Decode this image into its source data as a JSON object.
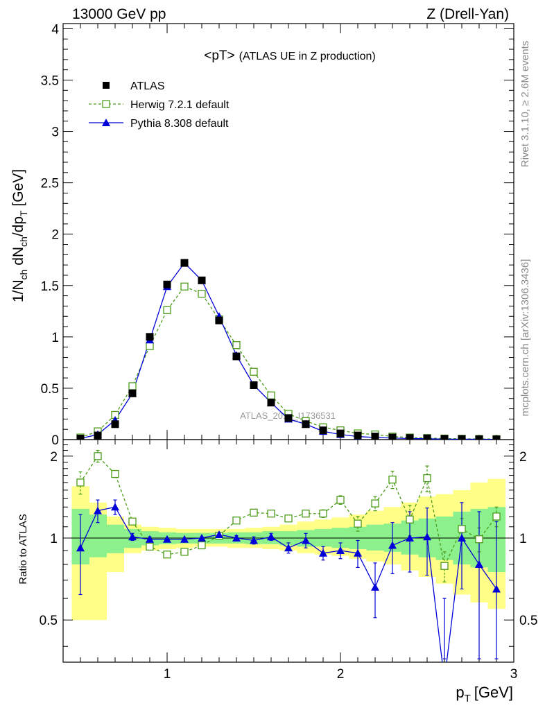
{
  "header": {
    "left": "13000 GeV pp",
    "right": "Z (Drell-Yan)"
  },
  "side_labels": {
    "rivet": "Rivet 3.1.10, ≥ 2.6M events",
    "mcplots": "mcplots.cern.ch [arXiv:1306.3436]"
  },
  "chart_data": {
    "type": "scatter",
    "title_main": "<pT>",
    "title_sub": "(ATLAS UE in Z production)",
    "watermark": "ATLAS_2019_I1736531",
    "xlabel": "p",
    "xlabel_sub": "T",
    "xlabel_unit": "[GeV]",
    "xlim": [
      0.4,
      3.0
    ],
    "x_ticks": [
      1,
      2,
      3
    ],
    "x_tick_labels": [
      "1",
      "2",
      "3"
    ],
    "main": {
      "ylabel_parts": {
        "a": "1/N",
        "a_sub": "ch",
        "b": " dN",
        "b_sub": "ch",
        "c": "/dp",
        "c_sub": "T",
        "d": " [GeV]"
      },
      "ylim": [
        0,
        4.05
      ],
      "y_ticks": [
        0,
        0.5,
        1,
        1.5,
        2,
        2.5,
        3,
        3.5,
        4
      ],
      "y_tick_labels": [
        "0",
        "0.5",
        "1",
        "1.5",
        "2",
        "2.5",
        "3",
        "3.5",
        "4"
      ],
      "legend": [
        "ATLAS",
        "Herwig 7.2.1 default",
        "Pythia 8.308 default"
      ],
      "x": [
        0.5,
        0.6,
        0.7,
        0.8,
        0.9,
        1.0,
        1.1,
        1.2,
        1.3,
        1.4,
        1.5,
        1.6,
        1.7,
        1.8,
        1.9,
        2.0,
        2.1,
        2.2,
        2.3,
        2.4,
        2.5,
        2.6,
        2.7,
        2.8,
        2.9
      ],
      "series": [
        {
          "name": "ATLAS",
          "color": "#000000",
          "marker": "filled-square",
          "values": [
            0.01,
            0.04,
            0.15,
            0.45,
            1.0,
            1.51,
            1.72,
            1.55,
            1.16,
            0.81,
            0.53,
            0.36,
            0.21,
            0.15,
            0.09,
            0.06,
            0.04,
            0.03,
            0.02,
            0.015,
            0.012,
            0.008,
            0.006,
            0.004,
            0.003
          ]
        },
        {
          "name": "Herwig 7.2.1 default",
          "color": "#4b9b18",
          "marker": "open-square",
          "dashed": true,
          "values": [
            0.02,
            0.08,
            0.24,
            0.52,
            0.91,
            1.26,
            1.49,
            1.42,
            1.17,
            0.92,
            0.66,
            0.43,
            0.25,
            0.18,
            0.12,
            0.09,
            0.06,
            0.05,
            0.03,
            0.02,
            0.015,
            0.01,
            0.008,
            0.006,
            0.005
          ]
        },
        {
          "name": "Pythia 8.308 default",
          "color": "#0000d8",
          "marker": "filled-triangle",
          "values": [
            0.01,
            0.05,
            0.19,
            0.45,
            0.97,
            1.49,
            1.72,
            1.55,
            1.2,
            0.82,
            0.53,
            0.36,
            0.2,
            0.15,
            0.08,
            0.05,
            0.03,
            0.02,
            0.015,
            0.01,
            0.008,
            0.004,
            0.004,
            0.003,
            0.002
          ]
        }
      ]
    },
    "ratio": {
      "ylabel": "Ratio to ATLAS",
      "ylim": [
        0.35,
        2.3
      ],
      "y_ticks": [
        0.5,
        1,
        2
      ],
      "y_tick_labels": [
        "0.5",
        "1",
        "2"
      ],
      "band_edges": [
        0.45,
        0.55,
        0.65,
        0.75,
        0.85,
        0.95,
        1.05,
        1.15,
        1.25,
        1.35,
        1.45,
        1.55,
        1.65,
        1.75,
        1.85,
        1.95,
        2.05,
        2.15,
        2.25,
        2.35,
        2.45,
        2.55,
        2.65,
        2.75,
        2.85,
        2.95
      ],
      "band_outer": [
        [
          0.5,
          1.55
        ],
        [
          0.5,
          1.35
        ],
        [
          0.75,
          1.2
        ],
        [
          0.88,
          1.12
        ],
        [
          0.9,
          1.1
        ],
        [
          0.91,
          1.09
        ],
        [
          0.92,
          1.08
        ],
        [
          0.93,
          1.08
        ],
        [
          0.93,
          1.08
        ],
        [
          0.92,
          1.08
        ],
        [
          0.92,
          1.09
        ],
        [
          0.91,
          1.1
        ],
        [
          0.9,
          1.12
        ],
        [
          0.88,
          1.15
        ],
        [
          0.87,
          1.17
        ],
        [
          0.86,
          1.19
        ],
        [
          0.84,
          1.22
        ],
        [
          0.82,
          1.26
        ],
        [
          0.8,
          1.3
        ],
        [
          0.76,
          1.35
        ],
        [
          0.72,
          1.42
        ],
        [
          0.68,
          1.45
        ],
        [
          0.62,
          1.5
        ],
        [
          0.58,
          1.6
        ],
        [
          0.55,
          1.65
        ]
      ],
      "band_inner": [
        [
          0.8,
          1.28
        ],
        [
          0.85,
          1.22
        ],
        [
          0.88,
          1.12
        ],
        [
          0.92,
          1.08
        ],
        [
          0.94,
          1.06
        ],
        [
          0.95,
          1.05
        ],
        [
          0.955,
          1.045
        ],
        [
          0.955,
          1.045
        ],
        [
          0.955,
          1.045
        ],
        [
          0.955,
          1.05
        ],
        [
          0.95,
          1.05
        ],
        [
          0.95,
          1.06
        ],
        [
          0.94,
          1.06
        ],
        [
          0.93,
          1.07
        ],
        [
          0.93,
          1.08
        ],
        [
          0.92,
          1.09
        ],
        [
          0.91,
          1.1
        ],
        [
          0.9,
          1.12
        ],
        [
          0.89,
          1.13
        ],
        [
          0.87,
          1.16
        ],
        [
          0.85,
          1.18
        ],
        [
          0.83,
          1.2
        ],
        [
          0.8,
          1.25
        ],
        [
          0.78,
          1.28
        ],
        [
          0.75,
          1.3
        ]
      ],
      "x": [
        0.5,
        0.6,
        0.7,
        0.8,
        0.9,
        1.0,
        1.1,
        1.2,
        1.3,
        1.4,
        1.5,
        1.6,
        1.7,
        1.8,
        1.9,
        2.0,
        2.1,
        2.2,
        2.3,
        2.4,
        2.5,
        2.6,
        2.7,
        2.8,
        2.9
      ],
      "series": [
        {
          "name": "Herwig 7.2.1 default",
          "color": "#4b9b18",
          "marker": "open-square",
          "dashed": true,
          "values": [
            1.6,
            2.0,
            1.72,
            1.15,
            0.93,
            0.87,
            0.89,
            0.94,
            1.02,
            1.16,
            1.24,
            1.23,
            1.18,
            1.23,
            1.23,
            1.38,
            1.13,
            1.34,
            1.64,
            1.17,
            1.66,
            0.79,
            1.08,
            0.99,
            1.2
          ],
          "err": [
            0.15,
            0.1,
            0.05,
            0.03,
            0.02,
            0.01,
            0.01,
            0.01,
            0.01,
            0.02,
            0.02,
            0.02,
            0.02,
            0.03,
            0.04,
            0.05,
            0.07,
            0.08,
            0.12,
            0.15,
            0.18,
            0.1,
            0.1,
            0.1,
            0.1
          ]
        },
        {
          "name": "Pythia 8.308 default",
          "color": "#0000d8",
          "marker": "filled-triangle",
          "values": [
            0.92,
            1.26,
            1.3,
            1.01,
            0.99,
            0.99,
            0.99,
            1.0,
            1.03,
            1.0,
            0.98,
            1.01,
            0.92,
            0.98,
            0.88,
            0.9,
            0.88,
            0.66,
            0.94,
            1.0,
            1.01,
            0.3,
            1.0,
            0.8,
            0.65
          ],
          "err": [
            0.3,
            0.12,
            0.08,
            0.03,
            0.02,
            0.01,
            0.01,
            0.01,
            0.02,
            0.02,
            0.03,
            0.03,
            0.04,
            0.06,
            0.05,
            0.06,
            0.1,
            0.15,
            0.2,
            0.25,
            0.28,
            0.3,
            0.35,
            0.45,
            0.5
          ]
        }
      ]
    }
  }
}
